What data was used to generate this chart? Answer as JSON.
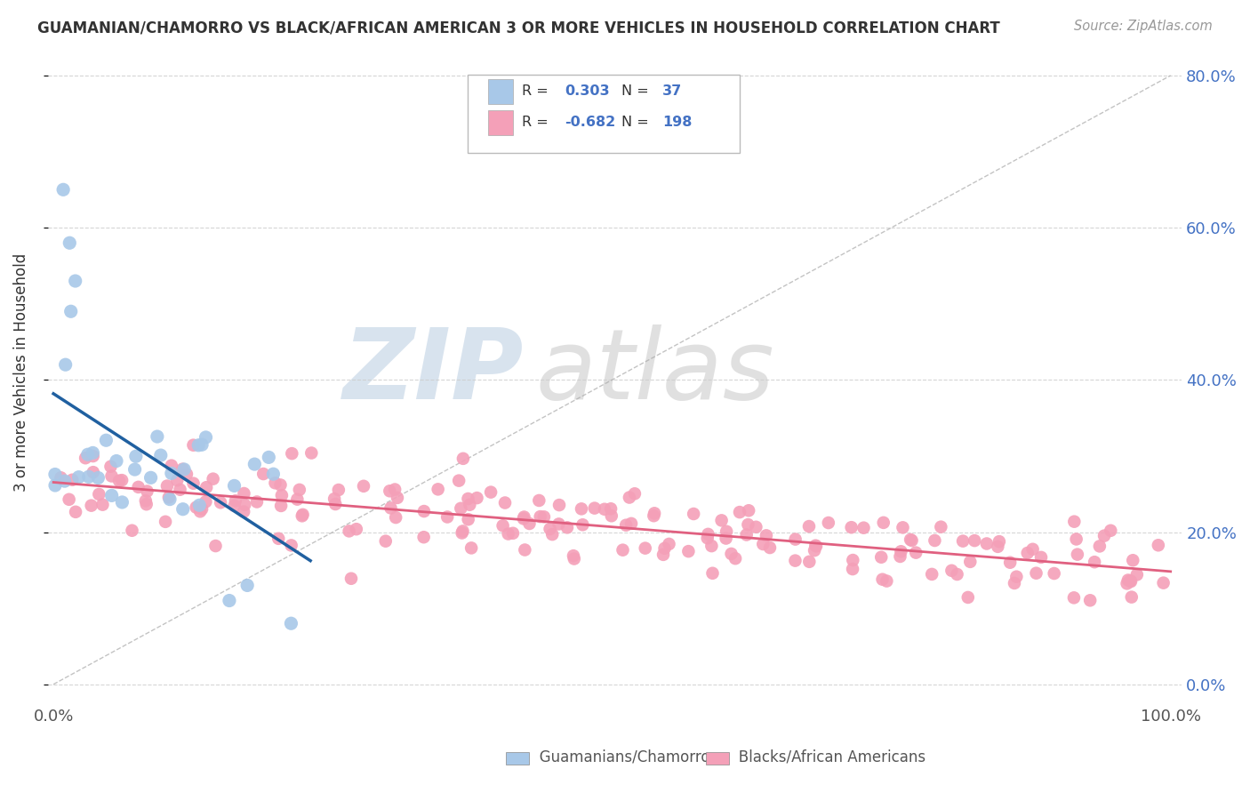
{
  "title": "GUAMANIAN/CHAMORRO VS BLACK/AFRICAN AMERICAN 3 OR MORE VEHICLES IN HOUSEHOLD CORRELATION CHART",
  "source": "Source: ZipAtlas.com",
  "ylabel": "3 or more Vehicles in Household",
  "blue_color": "#a8c8e8",
  "pink_color": "#f4a0b8",
  "blue_line_color": "#2060a0",
  "pink_line_color": "#e06080",
  "legend_R_blue": "0.303",
  "legend_N_blue": "37",
  "legend_R_pink": "-0.682",
  "legend_N_pink": "198",
  "grid_color": "#cccccc",
  "watermark_zip_color": "#c8d8e8",
  "watermark_atlas_color": "#c8c8c8",
  "right_tick_color": "#4472c4",
  "title_color": "#333333",
  "source_color": "#999999",
  "ylabel_color": "#333333",
  "legend_text_color": "#333333",
  "legend_val_color": "#4472c4"
}
